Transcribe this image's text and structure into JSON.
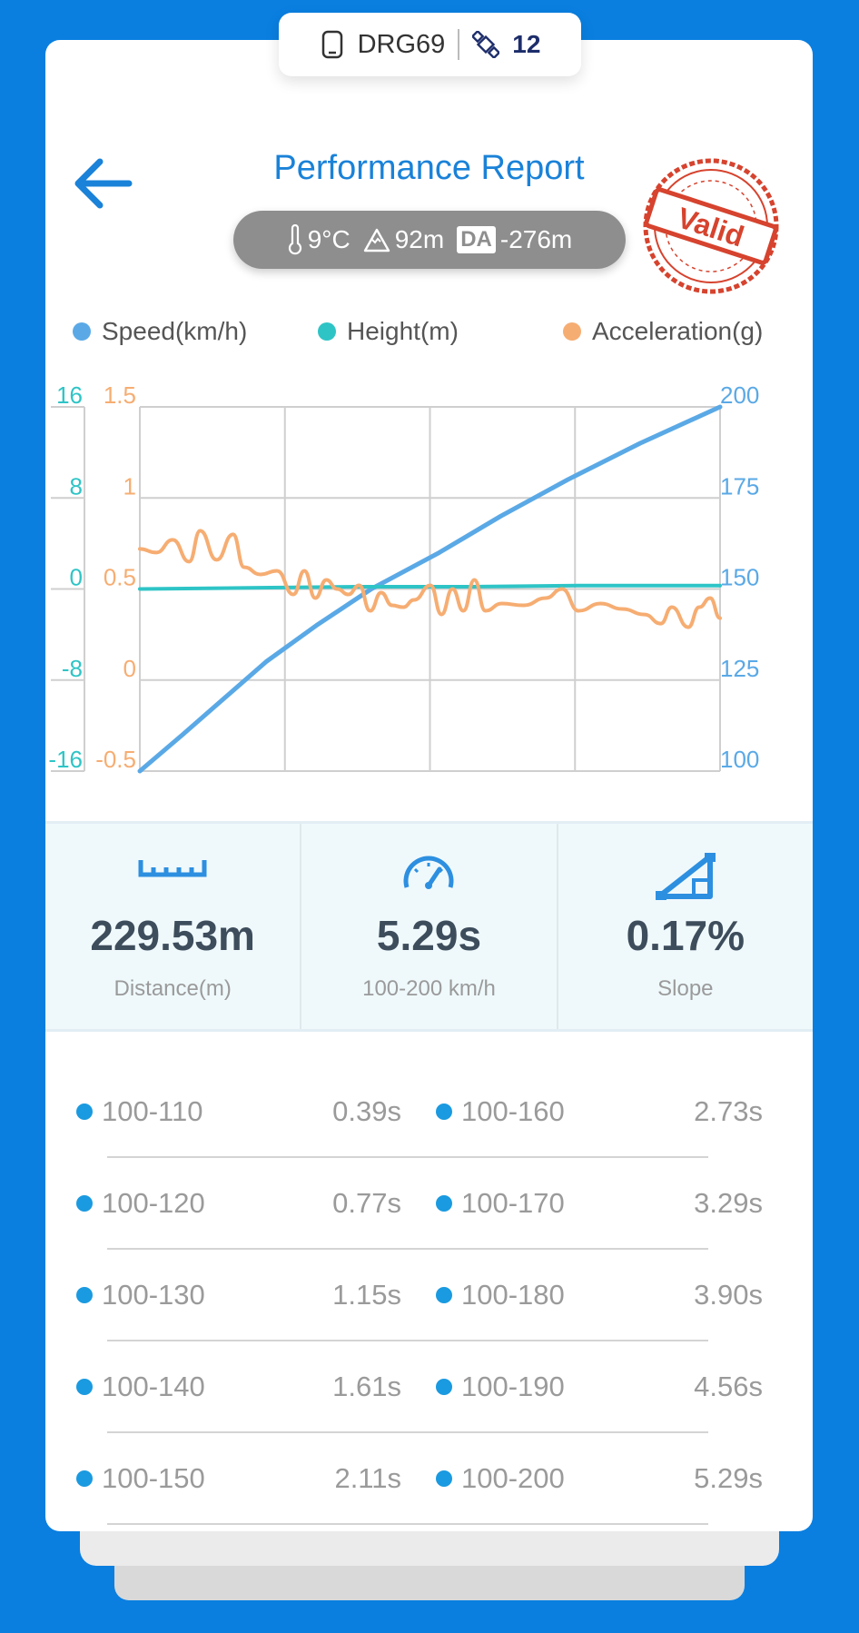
{
  "device": {
    "name": "DRG69",
    "satellites": "12",
    "icons": [
      "phone-icon",
      "satellite-icon"
    ]
  },
  "header": {
    "title": "Performance Report",
    "stamp_text": "Valid",
    "back_icon": "arrow-left-icon"
  },
  "conditions": {
    "temperature": "9°C",
    "altitude": "92m",
    "da_label": "DA",
    "density_altitude": "-276m"
  },
  "legend": [
    {
      "label": "Speed(km/h)",
      "color": "#5aa9e6"
    },
    {
      "label": "Height(m)",
      "color": "#2ec4c6"
    },
    {
      "label": "Acceleration(g)",
      "color": "#f6ad72"
    }
  ],
  "chart_data": {
    "type": "line",
    "x_range": [
      0,
      5.29
    ],
    "axes": {
      "height": {
        "ticks": [
          "16",
          "8",
          "0",
          "-8",
          "-16"
        ],
        "range": [
          -16,
          16
        ],
        "color": "#2ec4c6"
      },
      "acceleration": {
        "ticks": [
          "1.5",
          "1",
          "0.5",
          "0",
          "-0.5"
        ],
        "range": [
          -0.5,
          1.5
        ],
        "color": "#f6ad72"
      },
      "speed": {
        "ticks": [
          "200",
          "175",
          "150",
          "125",
          "100"
        ],
        "range": [
          100,
          200
        ],
        "color": "#5aa9e6"
      }
    },
    "series": [
      {
        "name": "Speed(km/h)",
        "color": "#5aa9e6",
        "axis": "speed",
        "x": [
          0,
          0.39,
          0.77,
          1.15,
          1.61,
          2.11,
          2.73,
          3.29,
          3.9,
          4.56,
          5.29
        ],
        "y": [
          100,
          110,
          120,
          130,
          140,
          150,
          160,
          170,
          180,
          190,
          200
        ]
      },
      {
        "name": "Height(m)",
        "color": "#2ec4c6",
        "axis": "height",
        "x": [
          0,
          1.0,
          2.0,
          3.0,
          4.0,
          5.29
        ],
        "y": [
          0,
          0.1,
          0.2,
          0.2,
          0.3,
          0.3
        ]
      },
      {
        "name": "Acceleration(g)",
        "color": "#f6ad72",
        "axis": "acceleration",
        "x": [
          0,
          0.15,
          0.3,
          0.45,
          0.55,
          0.7,
          0.85,
          0.95,
          1.1,
          1.25,
          1.4,
          1.5,
          1.6,
          1.7,
          1.8,
          1.9,
          2.0,
          2.1,
          2.2,
          2.3,
          2.4,
          2.5,
          2.65,
          2.75,
          2.85,
          2.95,
          3.05,
          3.15,
          3.3,
          3.5,
          3.7,
          3.85,
          4.0,
          4.2,
          4.4,
          4.6,
          4.75,
          4.85,
          5.0,
          5.1,
          5.2,
          5.29
        ],
        "y": [
          0.72,
          0.7,
          0.77,
          0.65,
          0.82,
          0.66,
          0.8,
          0.62,
          0.58,
          0.6,
          0.47,
          0.6,
          0.45,
          0.55,
          0.5,
          0.47,
          0.52,
          0.38,
          0.48,
          0.41,
          0.4,
          0.44,
          0.52,
          0.36,
          0.5,
          0.38,
          0.55,
          0.38,
          0.42,
          0.41,
          0.45,
          0.5,
          0.38,
          0.42,
          0.39,
          0.36,
          0.31,
          0.4,
          0.29,
          0.4,
          0.45,
          0.34
        ]
      }
    ]
  },
  "stats": [
    {
      "value": "229.53m",
      "label": "Distance(m)",
      "icon": "ruler-icon"
    },
    {
      "value": "5.29s",
      "label": "100-200 km/h",
      "icon": "speedometer-icon"
    },
    {
      "value": "0.17%",
      "label": "Slope",
      "icon": "slope-icon"
    }
  ],
  "splits": [
    {
      "left_range": "100-110",
      "left_time": "0.39s",
      "right_range": "100-160",
      "right_time": "2.73s"
    },
    {
      "left_range": "100-120",
      "left_time": "0.77s",
      "right_range": "100-170",
      "right_time": "3.29s"
    },
    {
      "left_range": "100-130",
      "left_time": "1.15s",
      "right_range": "100-180",
      "right_time": "3.90s"
    },
    {
      "left_range": "100-140",
      "left_time": "1.61s",
      "right_range": "100-190",
      "right_time": "4.56s"
    },
    {
      "left_range": "100-150",
      "left_time": "2.11s",
      "right_range": "100-200",
      "right_time": "5.29s"
    }
  ]
}
